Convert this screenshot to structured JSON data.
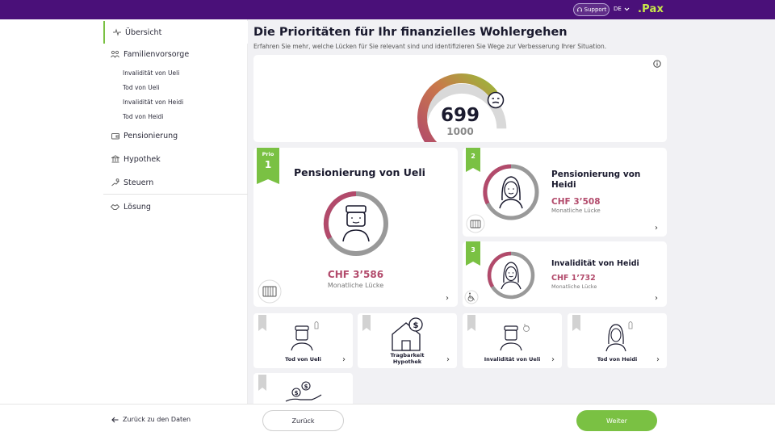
{
  "colors": {
    "brand": "#4a1079",
    "accent": "#7ac143",
    "gap": "#b24a6b",
    "logo": "#c8e84a"
  },
  "topbar": {
    "support_label": "Support",
    "language": "DE",
    "logo": ".Pax"
  },
  "sidebar": {
    "items": [
      {
        "label": "Übersicht",
        "icon": "pulse-icon"
      },
      {
        "label": "Familienvorsorge",
        "icon": "family-icon"
      },
      {
        "label": "Pensionierung",
        "icon": "wallet-icon"
      },
      {
        "label": "Hypothek",
        "icon": "bank-icon"
      },
      {
        "label": "Steuern",
        "icon": "tax-icon"
      },
      {
        "label": "Lösung",
        "icon": "handshake-icon"
      }
    ],
    "subitems": [
      "Invalidität von Ueli",
      "Tod von Ueli",
      "Invalidität von Heidi",
      "Tod von Heidi"
    ]
  },
  "main": {
    "title": "Die Prioritäten für Ihr finanzielles Wohlergehen",
    "subtitle": "Erfahren Sie mehr, welche Lücken für Sie relevant sind und identifizieren Sie Wege zur Verbesserung Ihrer Situation.",
    "score": {
      "value": "699",
      "max": "1000",
      "fraction": 0.699,
      "mood_icon": "neutral-face-icon"
    },
    "priorities": [
      {
        "prio_label": "Prio",
        "rank": "1",
        "title": "Pensionierung von Ueli",
        "amount": "CHF 3’586",
        "gap_label": "Monatliche Lücke",
        "icon": "man-avatar-icon",
        "category_icon": "wallet-icon"
      },
      {
        "rank": "2",
        "title": "Pensionierung von Heidi",
        "amount": "CHF 3’508",
        "gap_label": "Monatliche Lücke",
        "icon": "woman-avatar-icon",
        "category_icon": "wallet-icon"
      },
      {
        "rank": "3",
        "title": "Invalidität von Heidi",
        "amount": "CHF 1’732",
        "gap_label": "Monatliche Lücke",
        "icon": "woman-avatar-icon",
        "category_icon": "wheelchair-icon"
      }
    ],
    "small_cards": [
      {
        "label": "Tod von Ueli",
        "icon": "man-tag-icon"
      },
      {
        "label": "Tragbarkeit Hypothek",
        "label_line1": "Tragbarkeit",
        "label_line2": "Hypothek",
        "icon": "house-dollar-icon"
      },
      {
        "label": "Invalidität von Ueli",
        "icon": "man-wheelchair-icon"
      },
      {
        "label": "Tod von Heidi",
        "icon": "woman-tag-icon"
      },
      {
        "label": "",
        "icon": "hand-coins-icon"
      }
    ]
  },
  "footer": {
    "back_link": "Zurück zu den Daten",
    "back_button": "Zurück",
    "next_button": "Weiter"
  }
}
